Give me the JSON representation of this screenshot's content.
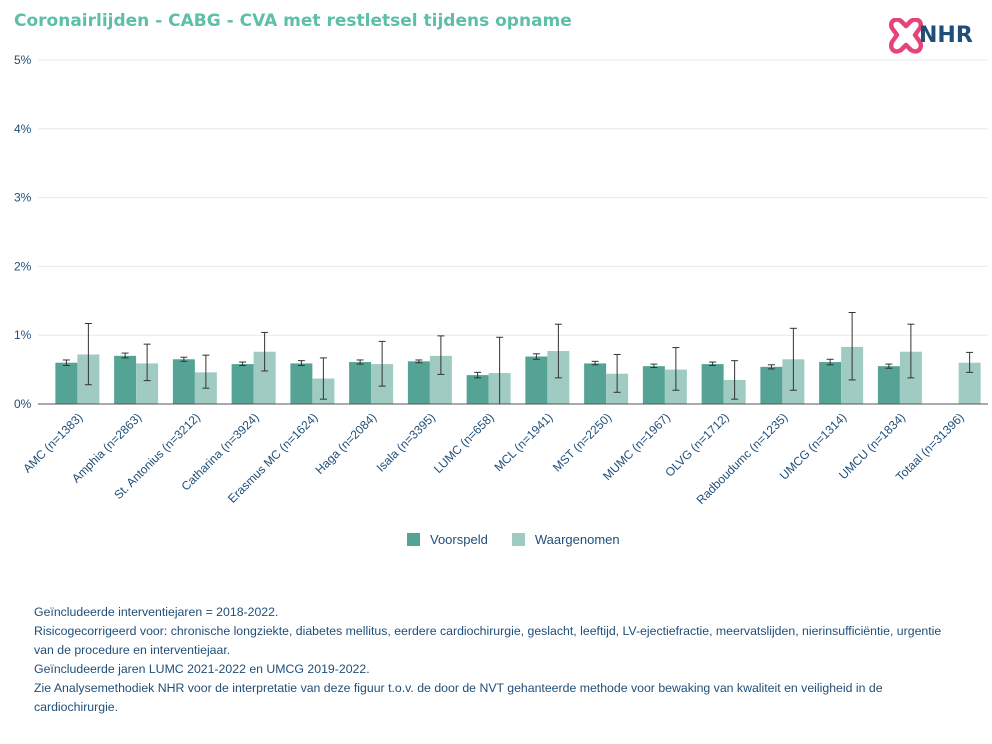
{
  "title": "Coronairlijden - CABG - CVA met restletsel tijdens opname",
  "logo": {
    "text": "NHR",
    "mark_color": "#e6437a"
  },
  "colors": {
    "predicted": "#55a395",
    "observed": "#9fcbc3",
    "axis_text": "#1f4e79",
    "grid": "#e8e8e8",
    "title": "#5cbfa7"
  },
  "legend": [
    {
      "label": "Voorspeld",
      "color": "#55a395"
    },
    {
      "label": "Waargenomen",
      "color": "#9fcbc3"
    }
  ],
  "notes": [
    "Geïncludeerde interventiejaren = 2018-2022.",
    "Risicogecorrigeerd voor: chronische longziekte, diabetes mellitus, eerdere cardiochirurgie, geslacht, leeftijd, LV-ejectiefractie, meervatslijden, nierinsufficiëntie, urgentie van de procedure en interventiejaar.",
    "Geïncludeerde jaren LUMC 2021-2022 en UMCG 2019-2022.",
    "Zie Analysemethodiek NHR voor de interpretatie van deze figuur t.o.v. de door de NVT gehanteerde methode voor bewaking van kwaliteit en veiligheid in de cardiochirurgie."
  ],
  "chart_data": {
    "type": "bar",
    "title": "Coronairlijden - CABG - CVA met restletsel tijdens opname",
    "ylim": [
      0,
      5
    ],
    "yticks": [
      "0%",
      "1%",
      "2%",
      "3%",
      "4%",
      "5%"
    ],
    "grid": true,
    "legend_position": "bottom",
    "categories": [
      "AMC (n=1383)",
      "Amphia (n=2863)",
      "St. Antonius (n=3212)",
      "Catharina (n=3924)",
      "Erasmus MC (n=1624)",
      "Haga (n=2084)",
      "Isala (n=3395)",
      "LUMC (n=658)",
      "MCL (n=1941)",
      "MST (n=2250)",
      "MUMC (n=1967)",
      "OLVG (n=1712)",
      "Radboudumc (n=1235)",
      "UMCG (n=1314)",
      "UMCU (n=1834)",
      "Totaal (n=31396)"
    ],
    "series": [
      {
        "name": "Voorspeld",
        "values": [
          0.6,
          0.7,
          0.65,
          0.58,
          0.59,
          0.61,
          0.62,
          0.42,
          0.69,
          0.59,
          0.55,
          0.58,
          0.54,
          0.61,
          0.55,
          null
        ],
        "err_low": [
          0.56,
          0.67,
          0.62,
          0.56,
          0.56,
          0.58,
          0.6,
          0.38,
          0.65,
          0.57,
          0.53,
          0.56,
          0.51,
          0.57,
          0.52,
          null
        ],
        "err_high": [
          0.64,
          0.74,
          0.68,
          0.61,
          0.63,
          0.64,
          0.64,
          0.46,
          0.73,
          0.62,
          0.58,
          0.61,
          0.57,
          0.65,
          0.58,
          null
        ]
      },
      {
        "name": "Waargenomen",
        "values": [
          0.72,
          0.59,
          0.46,
          0.76,
          0.37,
          0.58,
          0.7,
          0.45,
          0.77,
          0.44,
          0.5,
          0.35,
          0.65,
          0.83,
          0.76,
          0.6
        ],
        "err_low": [
          0.28,
          0.34,
          0.23,
          0.48,
          0.07,
          0.26,
          0.43,
          0.0,
          0.38,
          0.17,
          0.2,
          0.07,
          0.2,
          0.35,
          0.38,
          0.46
        ],
        "err_high": [
          1.17,
          0.87,
          0.71,
          1.04,
          0.67,
          0.91,
          0.99,
          0.97,
          1.16,
          0.72,
          0.82,
          0.63,
          1.1,
          1.33,
          1.16,
          0.75
        ]
      }
    ]
  }
}
